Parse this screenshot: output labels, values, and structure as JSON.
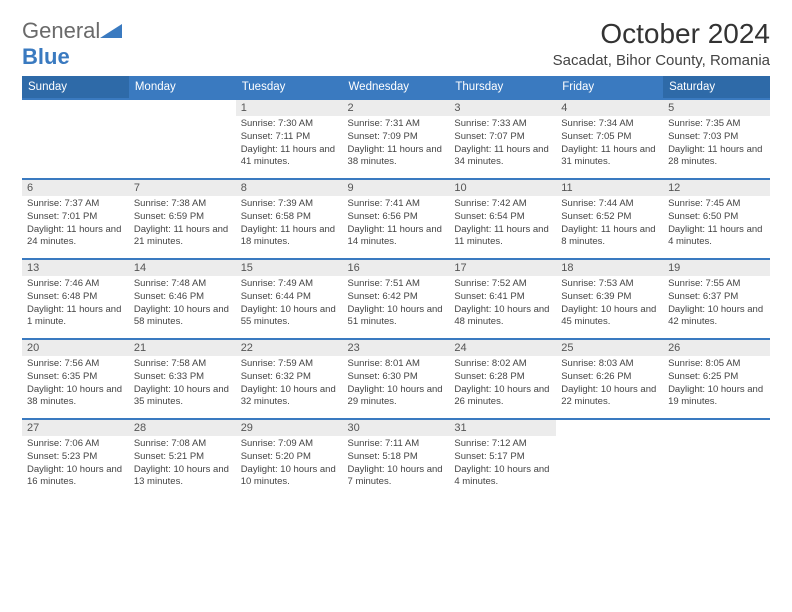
{
  "logo": {
    "general": "General",
    "blue": "Blue"
  },
  "header": {
    "month": "October 2024",
    "location": "Sacadat, Bihor County, Romania"
  },
  "colors": {
    "header_weekday": "#3a7ac0",
    "header_weekend": "#2e6aa8",
    "daynum_bg": "#ececec",
    "row_border": "#3a7ac0",
    "logo_general": "#6a6a6a",
    "logo_blue": "#3a7ac0",
    "logo_triangle": "#3a7ac0",
    "text": "#444444",
    "title": "#333333",
    "background": "#ffffff"
  },
  "weekdays": [
    "Sunday",
    "Monday",
    "Tuesday",
    "Wednesday",
    "Thursday",
    "Friday",
    "Saturday"
  ],
  "weeks": [
    [
      {
        "empty": true
      },
      {
        "empty": true
      },
      {
        "day": "1",
        "sunrise": "Sunrise: 7:30 AM",
        "sunset": "Sunset: 7:11 PM",
        "daylight": "Daylight: 11 hours and 41 minutes."
      },
      {
        "day": "2",
        "sunrise": "Sunrise: 7:31 AM",
        "sunset": "Sunset: 7:09 PM",
        "daylight": "Daylight: 11 hours and 38 minutes."
      },
      {
        "day": "3",
        "sunrise": "Sunrise: 7:33 AM",
        "sunset": "Sunset: 7:07 PM",
        "daylight": "Daylight: 11 hours and 34 minutes."
      },
      {
        "day": "4",
        "sunrise": "Sunrise: 7:34 AM",
        "sunset": "Sunset: 7:05 PM",
        "daylight": "Daylight: 11 hours and 31 minutes."
      },
      {
        "day": "5",
        "sunrise": "Sunrise: 7:35 AM",
        "sunset": "Sunset: 7:03 PM",
        "daylight": "Daylight: 11 hours and 28 minutes."
      }
    ],
    [
      {
        "day": "6",
        "sunrise": "Sunrise: 7:37 AM",
        "sunset": "Sunset: 7:01 PM",
        "daylight": "Daylight: 11 hours and 24 minutes."
      },
      {
        "day": "7",
        "sunrise": "Sunrise: 7:38 AM",
        "sunset": "Sunset: 6:59 PM",
        "daylight": "Daylight: 11 hours and 21 minutes."
      },
      {
        "day": "8",
        "sunrise": "Sunrise: 7:39 AM",
        "sunset": "Sunset: 6:58 PM",
        "daylight": "Daylight: 11 hours and 18 minutes."
      },
      {
        "day": "9",
        "sunrise": "Sunrise: 7:41 AM",
        "sunset": "Sunset: 6:56 PM",
        "daylight": "Daylight: 11 hours and 14 minutes."
      },
      {
        "day": "10",
        "sunrise": "Sunrise: 7:42 AM",
        "sunset": "Sunset: 6:54 PM",
        "daylight": "Daylight: 11 hours and 11 minutes."
      },
      {
        "day": "11",
        "sunrise": "Sunrise: 7:44 AM",
        "sunset": "Sunset: 6:52 PM",
        "daylight": "Daylight: 11 hours and 8 minutes."
      },
      {
        "day": "12",
        "sunrise": "Sunrise: 7:45 AM",
        "sunset": "Sunset: 6:50 PM",
        "daylight": "Daylight: 11 hours and 4 minutes."
      }
    ],
    [
      {
        "day": "13",
        "sunrise": "Sunrise: 7:46 AM",
        "sunset": "Sunset: 6:48 PM",
        "daylight": "Daylight: 11 hours and 1 minute."
      },
      {
        "day": "14",
        "sunrise": "Sunrise: 7:48 AM",
        "sunset": "Sunset: 6:46 PM",
        "daylight": "Daylight: 10 hours and 58 minutes."
      },
      {
        "day": "15",
        "sunrise": "Sunrise: 7:49 AM",
        "sunset": "Sunset: 6:44 PM",
        "daylight": "Daylight: 10 hours and 55 minutes."
      },
      {
        "day": "16",
        "sunrise": "Sunrise: 7:51 AM",
        "sunset": "Sunset: 6:42 PM",
        "daylight": "Daylight: 10 hours and 51 minutes."
      },
      {
        "day": "17",
        "sunrise": "Sunrise: 7:52 AM",
        "sunset": "Sunset: 6:41 PM",
        "daylight": "Daylight: 10 hours and 48 minutes."
      },
      {
        "day": "18",
        "sunrise": "Sunrise: 7:53 AM",
        "sunset": "Sunset: 6:39 PM",
        "daylight": "Daylight: 10 hours and 45 minutes."
      },
      {
        "day": "19",
        "sunrise": "Sunrise: 7:55 AM",
        "sunset": "Sunset: 6:37 PM",
        "daylight": "Daylight: 10 hours and 42 minutes."
      }
    ],
    [
      {
        "day": "20",
        "sunrise": "Sunrise: 7:56 AM",
        "sunset": "Sunset: 6:35 PM",
        "daylight": "Daylight: 10 hours and 38 minutes."
      },
      {
        "day": "21",
        "sunrise": "Sunrise: 7:58 AM",
        "sunset": "Sunset: 6:33 PM",
        "daylight": "Daylight: 10 hours and 35 minutes."
      },
      {
        "day": "22",
        "sunrise": "Sunrise: 7:59 AM",
        "sunset": "Sunset: 6:32 PM",
        "daylight": "Daylight: 10 hours and 32 minutes."
      },
      {
        "day": "23",
        "sunrise": "Sunrise: 8:01 AM",
        "sunset": "Sunset: 6:30 PM",
        "daylight": "Daylight: 10 hours and 29 minutes."
      },
      {
        "day": "24",
        "sunrise": "Sunrise: 8:02 AM",
        "sunset": "Sunset: 6:28 PM",
        "daylight": "Daylight: 10 hours and 26 minutes."
      },
      {
        "day": "25",
        "sunrise": "Sunrise: 8:03 AM",
        "sunset": "Sunset: 6:26 PM",
        "daylight": "Daylight: 10 hours and 22 minutes."
      },
      {
        "day": "26",
        "sunrise": "Sunrise: 8:05 AM",
        "sunset": "Sunset: 6:25 PM",
        "daylight": "Daylight: 10 hours and 19 minutes."
      }
    ],
    [
      {
        "day": "27",
        "sunrise": "Sunrise: 7:06 AM",
        "sunset": "Sunset: 5:23 PM",
        "daylight": "Daylight: 10 hours and 16 minutes."
      },
      {
        "day": "28",
        "sunrise": "Sunrise: 7:08 AM",
        "sunset": "Sunset: 5:21 PM",
        "daylight": "Daylight: 10 hours and 13 minutes."
      },
      {
        "day": "29",
        "sunrise": "Sunrise: 7:09 AM",
        "sunset": "Sunset: 5:20 PM",
        "daylight": "Daylight: 10 hours and 10 minutes."
      },
      {
        "day": "30",
        "sunrise": "Sunrise: 7:11 AM",
        "sunset": "Sunset: 5:18 PM",
        "daylight": "Daylight: 10 hours and 7 minutes."
      },
      {
        "day": "31",
        "sunrise": "Sunrise: 7:12 AM",
        "sunset": "Sunset: 5:17 PM",
        "daylight": "Daylight: 10 hours and 4 minutes."
      },
      {
        "empty": true
      },
      {
        "empty": true
      }
    ]
  ]
}
